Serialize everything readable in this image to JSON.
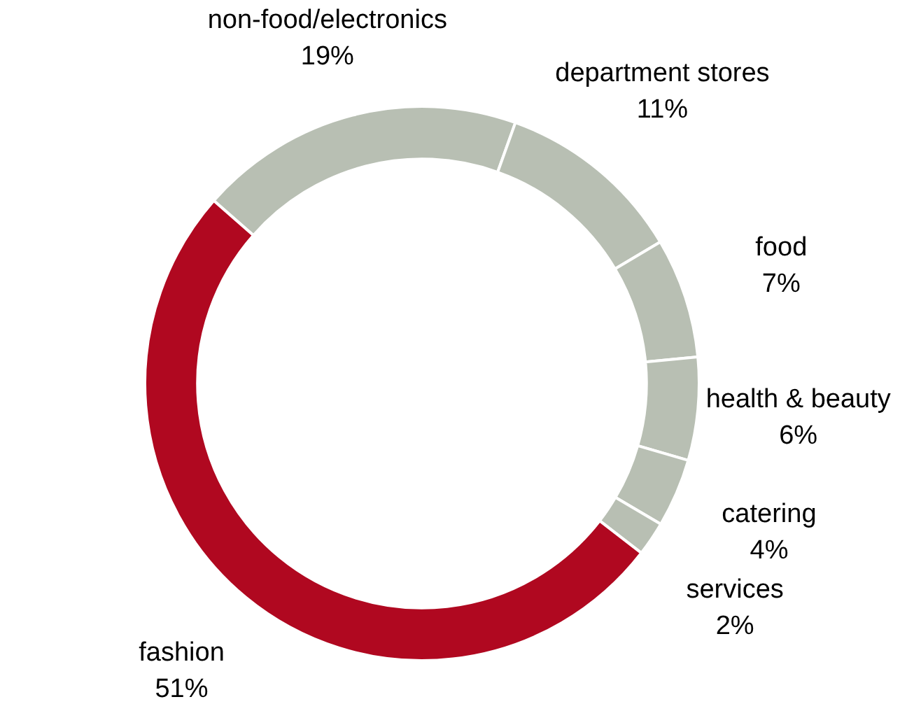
{
  "chart_data": {
    "type": "donut",
    "categories": [
      "non-food/electronics",
      "department stores",
      "food",
      "health & beauty",
      "catering",
      "services",
      "fashion"
    ],
    "values": [
      19,
      11,
      7,
      6,
      4,
      2,
      51
    ],
    "colors": [
      "#b8bfb3",
      "#b8bfb3",
      "#b8bfb3",
      "#b8bfb3",
      "#b8bfb3",
      "#b8bfb3",
      "#b00820"
    ],
    "value_labels": [
      "19%",
      "11%",
      "7%",
      "6%",
      "4%",
      "2%",
      "51%"
    ],
    "legend": false
  }
}
